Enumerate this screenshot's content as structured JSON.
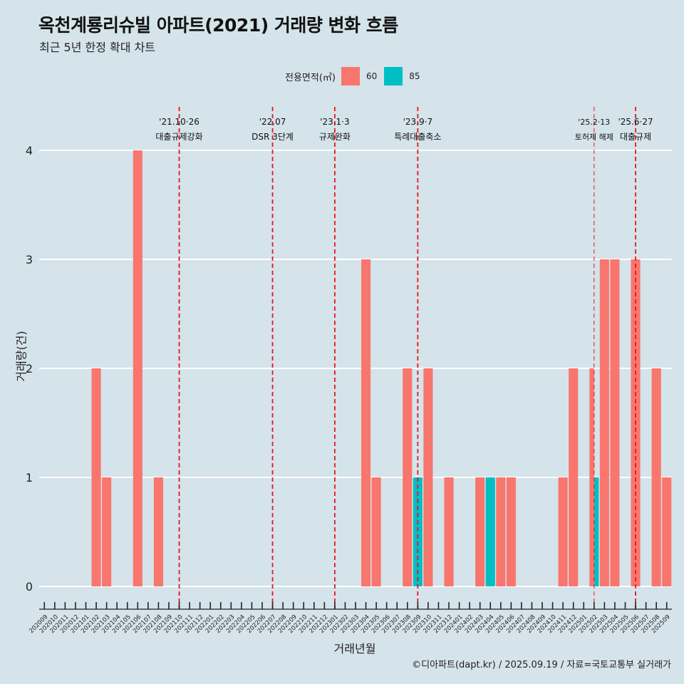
{
  "header": {
    "title": "옥천계룡리슈빌 아파트(2021) 거래량 변화 흐름",
    "subtitle": "최근 5년 한정 확대 차트"
  },
  "legend": {
    "title": "전용면적(㎡)",
    "items": [
      {
        "label": "60",
        "color": "#f8766d"
      },
      {
        "label": "85",
        "color": "#00bfc4"
      }
    ]
  },
  "caption": "©디아파트(dapt.kr) / 2025.09.19 / 자료=국토교통부 실거래가",
  "chart_data": {
    "type": "bar",
    "stacked": false,
    "dodge": true,
    "title": "옥천계룡리슈빌 아파트(2021) 거래량 변화 흐름",
    "subtitle": "최근 5년 한정 확대 차트",
    "xlabel": "거래년월",
    "ylabel": "거래량(건)",
    "ylim": [
      0,
      4
    ],
    "yticks": [
      0,
      1,
      2,
      3,
      4
    ],
    "grid": true,
    "legend_position": "top",
    "categories": [
      "202009",
      "202010",
      "202011",
      "202012",
      "202101",
      "202102",
      "202103",
      "202104",
      "202105",
      "202106",
      "202107",
      "202108",
      "202109",
      "202110",
      "202111",
      "202112",
      "202201",
      "202202",
      "202203",
      "202204",
      "202205",
      "202206",
      "202207",
      "202208",
      "202209",
      "202210",
      "202211",
      "202212",
      "202301",
      "202302",
      "202303",
      "202304",
      "202305",
      "202306",
      "202307",
      "202308",
      "202309",
      "202310",
      "202311",
      "202312",
      "202401",
      "202402",
      "202403",
      "202404",
      "202405",
      "202406",
      "202407",
      "202408",
      "202409",
      "202410",
      "202411",
      "202412",
      "202501",
      "202502",
      "202503",
      "202504",
      "202505",
      "202506",
      "202507",
      "202508",
      "202509"
    ],
    "series": [
      {
        "name": "60",
        "color": "#f8766d",
        "values": [
          0,
          0,
          0,
          0,
          0,
          2,
          1,
          0,
          0,
          4,
          0,
          1,
          0,
          0,
          0,
          0,
          0,
          0,
          0,
          0,
          0,
          0,
          0,
          0,
          0,
          0,
          0,
          0,
          0,
          0,
          0,
          3,
          1,
          0,
          0,
          2,
          0,
          2,
          0,
          1,
          0,
          0,
          1,
          0,
          1,
          1,
          0,
          0,
          0,
          0,
          1,
          2,
          0,
          2,
          3,
          3,
          0,
          3,
          0,
          2,
          1
        ]
      },
      {
        "name": "85",
        "color": "#00bfc4",
        "values": [
          0,
          0,
          0,
          0,
          0,
          0,
          0,
          0,
          0,
          0,
          0,
          0,
          0,
          0,
          0,
          0,
          0,
          0,
          0,
          0,
          0,
          0,
          0,
          0,
          0,
          0,
          0,
          0,
          0,
          0,
          0,
          0,
          0,
          0,
          0,
          0,
          1,
          0,
          0,
          0,
          0,
          0,
          0,
          1,
          0,
          0,
          0,
          0,
          0,
          0,
          0,
          0,
          0,
          1,
          0,
          0,
          0,
          0,
          0,
          0,
          0
        ]
      }
    ],
    "annotations": [
      {
        "month": "202110",
        "date": "'21.10·26",
        "text": "대출규제강화",
        "line": "thick"
      },
      {
        "month": "202207",
        "date": "'22.07",
        "text": "DSR 3단계",
        "line": "thick"
      },
      {
        "month": "202301",
        "date": "'23.1·3",
        "text": "규제완화",
        "line": "thick"
      },
      {
        "month": "202309",
        "date": "'23.9·7",
        "text": "특례대출축소",
        "line": "thick"
      },
      {
        "month": "202502",
        "date": "'25.2·13",
        "text": "토허제 해제",
        "line": "thin"
      },
      {
        "month": "202506",
        "date": "'25.6·27",
        "text": "대출규제",
        "line": "thick"
      }
    ]
  }
}
